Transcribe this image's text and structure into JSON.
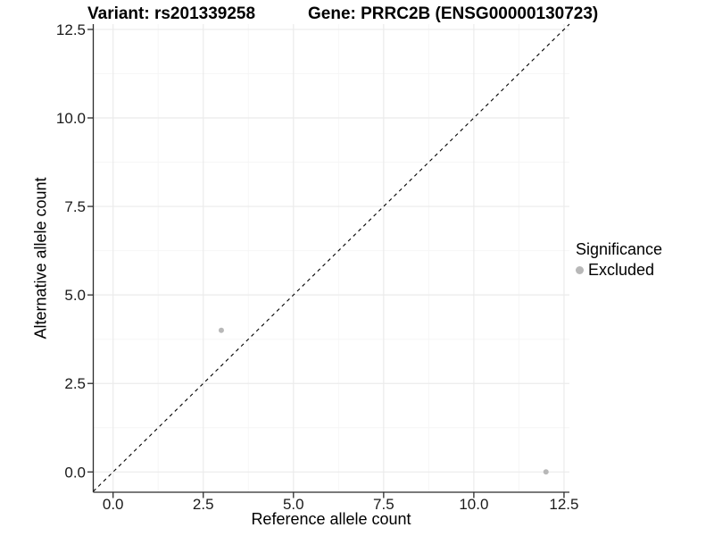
{
  "title": {
    "left": "Variant: rs201339258",
    "right": "Gene: PRRC2B (ENSG00000130723)"
  },
  "chart_data": {
    "type": "scatter",
    "title": "Variant: rs201339258    Gene: PRRC2B (ENSG00000130723)",
    "xlabel": "Reference allele count",
    "ylabel": "Alternative allele count",
    "xlim": [
      -0.55,
      12.66
    ],
    "ylim": [
      -0.57,
      12.66
    ],
    "x_ticks": [
      0.0,
      2.5,
      5.0,
      7.5,
      10.0,
      12.5
    ],
    "y_ticks": [
      0.0,
      2.5,
      5.0,
      7.5,
      10.0,
      12.5
    ],
    "x_tick_labels": [
      "0.0",
      "2.5",
      "5.0",
      "7.5",
      "10.0",
      "12.5"
    ],
    "y_tick_labels": [
      "0.0",
      "2.5",
      "5.0",
      "7.5",
      "10.0",
      "12.5"
    ],
    "x_minor_ticks": [
      1.25,
      3.75,
      6.25,
      8.75,
      11.25
    ],
    "y_minor_ticks": [
      1.25,
      3.75,
      6.25,
      8.75,
      11.25
    ],
    "grid": true,
    "series": [
      {
        "name": "Excluded",
        "color": "#b8b8b8",
        "points": [
          {
            "x": 3,
            "y": 4
          },
          {
            "x": 12,
            "y": 0
          }
        ]
      }
    ],
    "reference_line": {
      "type": "identity",
      "slope": 1,
      "intercept": 0,
      "style": "dashed",
      "color": "#000000"
    },
    "legend": {
      "title": "Significance",
      "position": "right",
      "items": [
        {
          "label": "Excluded",
          "color": "#b8b8b8"
        }
      ]
    }
  },
  "colors": {
    "background": "#ffffff",
    "grid_major": "#ebebeb",
    "grid_minor": "#f6f6f6",
    "axis_line": "#2b2b2b",
    "tick_text": "#1a1a1a",
    "point": "#b8b8b8",
    "dashed_line": "#000000"
  }
}
